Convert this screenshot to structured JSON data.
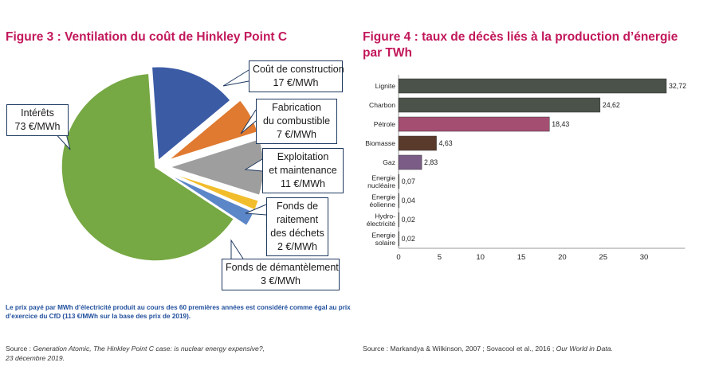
{
  "fig3": {
    "title": "Figure 3 : Ventilation du coût de Hinkley Point C",
    "note": "Le prix payé par MWh d’électricité produit au cours des 60 premières années est considéré comme égal au prix d’exercice du CfD (113 €/MWh sur la base des prix de 2019).",
    "source_prefix": "Source : ",
    "source_italic": "Generation Atomic, The Hinkley Point C case: is nuclear energy expensive?,",
    "source_line2": "23 décembre 2019."
  },
  "fig4": {
    "title": "Figure 4 : taux de décès liés à la production d’énergie par TWh",
    "source_prefix": "Source : Markandya & Wilkinson, 2007 ; Sovacool et al., 2016 ; ",
    "source_italic": "Our World in Data."
  },
  "chart_data": [
    {
      "type": "pie",
      "title": "Figure 3 : Ventilation du coût de Hinkley Point C",
      "unit": "€/MWh",
      "slices": [
        {
          "label": "Coût de construction",
          "label_lines": [
            "Coût de construction"
          ],
          "value_text": "17 €/MWh",
          "value": 17,
          "color": "#3b5ba5",
          "exploded": true
        },
        {
          "label": "Fabrication du combustible",
          "label_lines": [
            "Fabrication",
            "du combustible"
          ],
          "value_text": "7 €/MWh",
          "value": 7,
          "color": "#e07a30",
          "exploded": true
        },
        {
          "label": "Exploitation et maintenance",
          "label_lines": [
            "Exploitation",
            "et maintenance"
          ],
          "value_text": "11 €/MWh",
          "value": 11,
          "color": "#9e9e9e",
          "exploded": true
        },
        {
          "label": "Fonds de raitement des déchets",
          "label_lines": [
            "Fonds de",
            "raitement",
            "des déchets"
          ],
          "value_text": "2 €/MWh",
          "value": 2,
          "color": "#f2bd2c",
          "exploded": true
        },
        {
          "label": "Fonds de démantèlement",
          "label_lines": [
            "Fonds de démantèlement"
          ],
          "value_text": "3 €/MWh",
          "value": 3,
          "color": "#5b86c8",
          "exploded": true
        },
        {
          "label": "Intérêts",
          "label_lines": [
            "Intérêts"
          ],
          "value_text": "73 €/MWh",
          "value": 73,
          "color": "#76a843",
          "exploded": false
        }
      ]
    },
    {
      "type": "bar",
      "orientation": "horizontal",
      "title": "Figure 4 : taux de décès liés à la production d’énergie par TWh",
      "xlim": [
        0,
        35
      ],
      "xticks": [
        0,
        5,
        10,
        15,
        20,
        25,
        30
      ],
      "grid": false,
      "categories": [
        {
          "label": "Lignite",
          "lines": [
            "Lignite"
          ],
          "value": 32.72,
          "value_text": "32,72",
          "color": "#4a5249"
        },
        {
          "label": "Charbon",
          "lines": [
            "Charbon"
          ],
          "value": 24.62,
          "value_text": "24,62",
          "color": "#4a5249"
        },
        {
          "label": "Pétrole",
          "lines": [
            "Pétrole"
          ],
          "value": 18.43,
          "value_text": "18,43",
          "color": "#a44e72"
        },
        {
          "label": "Biomasse",
          "lines": [
            "Biomasse"
          ],
          "value": 4.63,
          "value_text": "4,63",
          "color": "#5a3b2b"
        },
        {
          "label": "Gaz",
          "lines": [
            "Gaz"
          ],
          "value": 2.83,
          "value_text": "2,83",
          "color": "#7b5c86"
        },
        {
          "label": "Energie nucléaire",
          "lines": [
            "Energie",
            "nucléaire"
          ],
          "value": 0.07,
          "value_text": "0,07",
          "color": "#4a5249"
        },
        {
          "label": "Energie éolienne",
          "lines": [
            "Energie",
            "éolienne"
          ],
          "value": 0.04,
          "value_text": "0,04",
          "color": "#4a5249"
        },
        {
          "label": "Hydro-électricité",
          "lines": [
            "Hydro-",
            "électricité"
          ],
          "value": 0.02,
          "value_text": "0,02",
          "color": "#4a5249"
        },
        {
          "label": "Energie solaire",
          "lines": [
            "Energie",
            "solaire"
          ],
          "value": 0.02,
          "value_text": "0,02",
          "color": "#4a5249"
        }
      ]
    }
  ]
}
